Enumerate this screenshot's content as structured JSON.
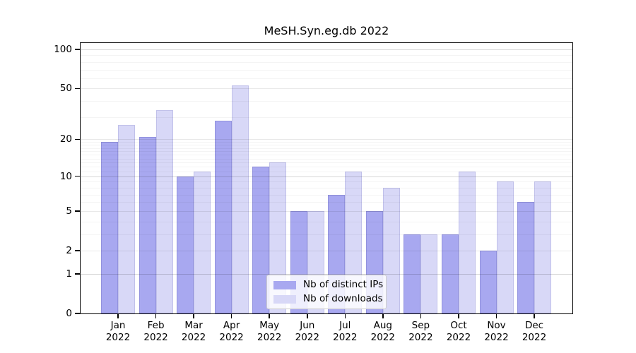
{
  "figure": {
    "background": "#ffffff",
    "axis_color": "#000000"
  },
  "chart_data": {
    "type": "bar",
    "title": "MeSH.Syn.eg.db 2022",
    "categories": [
      "Jan",
      "Feb",
      "Mar",
      "Apr",
      "May",
      "Jun",
      "Jul",
      "Aug",
      "Sep",
      "Oct",
      "Nov",
      "Dec"
    ],
    "x_year_label": "2022",
    "series": [
      {
        "name": "Nb of distinct IPs",
        "color": "#a8a8f0",
        "values": [
          19,
          21,
          10,
          28,
          12,
          5,
          7,
          5,
          3,
          3,
          2,
          6
        ]
      },
      {
        "name": "Nb of downloads",
        "color": "#d8d8f7",
        "values": [
          26,
          34,
          11,
          53,
          13,
          5,
          11,
          8,
          3,
          11,
          9,
          9
        ]
      }
    ],
    "yscale": "log1p",
    "yticks": [
      0,
      1,
      2,
      5,
      10,
      20,
      50,
      100
    ],
    "ylim": [
      0,
      110
    ],
    "grid": true,
    "legend_position": "bottom-center"
  }
}
